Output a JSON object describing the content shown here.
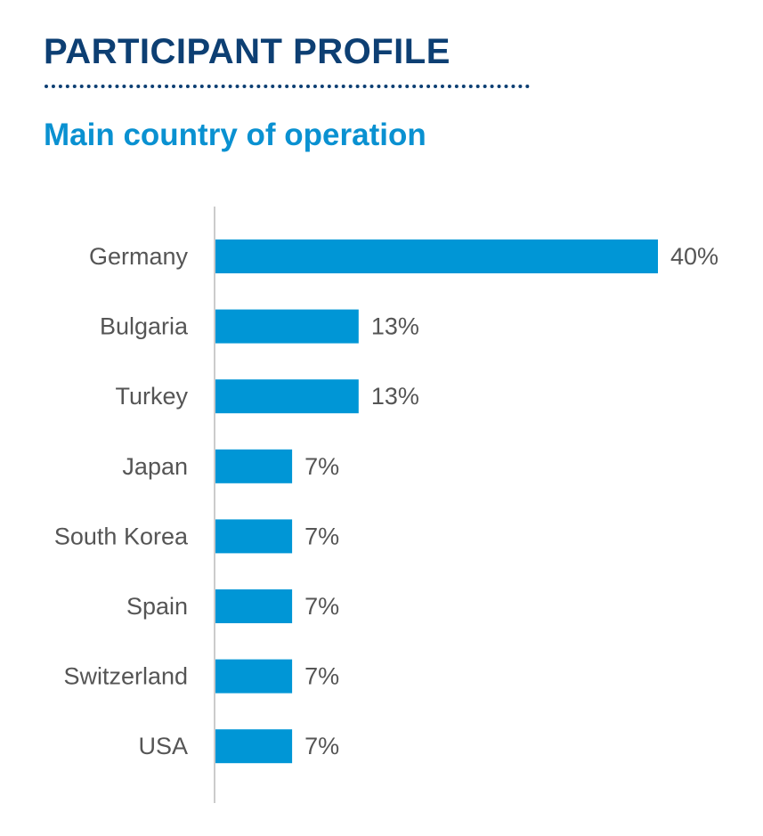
{
  "header": {
    "title": "PARTICIPANT PROFILE",
    "subtitle": "Main country of operation"
  },
  "colors": {
    "title": "#0d3f73",
    "subtitle": "#0a91d1",
    "bar": "#0096d6",
    "axis": "#cccccc",
    "label": "#555555"
  },
  "chart_data": {
    "type": "bar",
    "orientation": "horizontal",
    "title": "Main country of operation",
    "xlabel": "",
    "ylabel": "",
    "categories": [
      "Germany",
      "Bulgaria",
      "Turkey",
      "Japan",
      "South Korea",
      "Spain",
      "Switzerland",
      "USA"
    ],
    "values": [
      40,
      13,
      13,
      7,
      7,
      7,
      7,
      7
    ],
    "value_labels": [
      "40%",
      "13%",
      "13%",
      "7%",
      "7%",
      "7%",
      "7%",
      "7%"
    ],
    "unit": "%",
    "xlim": [
      0,
      40
    ],
    "grid": false,
    "legend": "none"
  }
}
